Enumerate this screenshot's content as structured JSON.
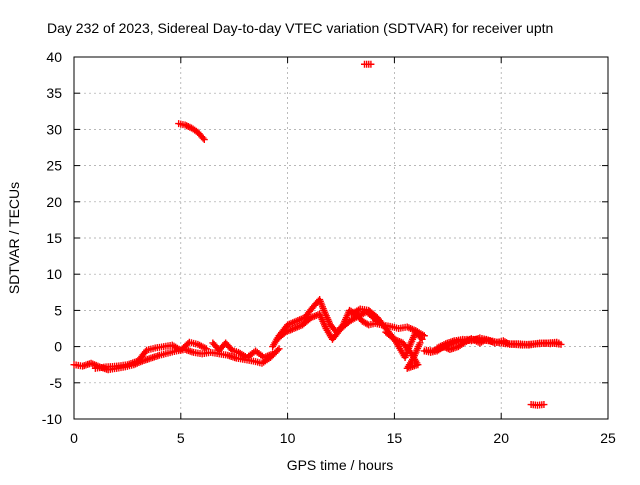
{
  "chart_data": {
    "type": "scatter",
    "title": "Day 232 of 2023, Sidereal Day-to-day VTEC variation (SDTVAR) for receiver uptn",
    "xlabel": "GPS time / hours",
    "ylabel": "SDTVAR / TECUs",
    "xlim": [
      0,
      25
    ],
    "ylim": [
      -10,
      40
    ],
    "xticks": [
      0,
      5,
      10,
      15,
      20,
      25
    ],
    "yticks": [
      -10,
      -5,
      0,
      5,
      10,
      15,
      20,
      25,
      30,
      35,
      40
    ],
    "grid": true,
    "marker": "+",
    "series_color": "#ff0000",
    "series": [
      {
        "name": "SDTVAR",
        "segments": [
          [
            [
              0,
              -2.5
            ],
            [
              0.4,
              -2.7
            ],
            [
              0.8,
              -2.3
            ],
            [
              1.2,
              -2.8
            ],
            [
              1.6,
              -3.2
            ],
            [
              2.0,
              -3.0
            ],
            [
              2.4,
              -2.8
            ],
            [
              2.8,
              -2.5
            ],
            [
              3.2,
              -2.0
            ],
            [
              3.6,
              -1.6
            ],
            [
              4.0,
              -1.2
            ],
            [
              4.4,
              -0.9
            ],
            [
              4.8,
              -0.6
            ],
            [
              5.2,
              -0.4
            ],
            [
              5.6,
              -0.8
            ],
            [
              6.0,
              -1.0
            ],
            [
              6.4,
              -0.8
            ],
            [
              6.8,
              -1.0
            ],
            [
              7.2,
              -1.2
            ],
            [
              7.6,
              -1.6
            ],
            [
              8.0,
              -1.8
            ],
            [
              8.4,
              -2.0
            ],
            [
              8.8,
              -2.3
            ],
            [
              9.2,
              -1.5
            ],
            [
              9.6,
              -0.3
            ]
          ],
          [
            [
              1.0,
              -3.0
            ],
            [
              1.5,
              -2.8
            ],
            [
              2.0,
              -2.7
            ],
            [
              2.5,
              -2.5
            ],
            [
              3.0,
              -2.0
            ],
            [
              3.4,
              -0.5
            ],
            [
              3.8,
              -0.2
            ],
            [
              4.2,
              0.0
            ],
            [
              4.6,
              0.2
            ],
            [
              5.0,
              -0.5
            ],
            [
              5.4,
              0.6
            ],
            [
              5.8,
              0.3
            ],
            [
              6.2,
              -0.3
            ]
          ],
          [
            [
              6.5,
              0.5
            ],
            [
              6.8,
              -0.5
            ],
            [
              7.1,
              0.5
            ],
            [
              7.4,
              -0.5
            ],
            [
              7.7,
              -0.8
            ],
            [
              8.1,
              -1.5
            ],
            [
              8.5,
              -0.6
            ],
            [
              8.9,
              -1.5
            ],
            [
              9.3,
              -1.0
            ]
          ],
          [
            [
              9.3,
              0.0
            ],
            [
              9.6,
              1.5
            ],
            [
              10.0,
              3.0
            ],
            [
              10.4,
              3.5
            ],
            [
              10.8,
              4.0
            ],
            [
              11.2,
              5.5
            ],
            [
              11.5,
              6.5
            ],
            [
              11.7,
              5.0
            ],
            [
              12.0,
              3.0
            ],
            [
              12.3,
              2.0
            ],
            [
              12.6,
              3.0
            ],
            [
              12.9,
              5.0
            ],
            [
              13.2,
              4.5
            ],
            [
              13.5,
              3.5
            ],
            [
              13.8,
              3.0
            ],
            [
              14.1,
              3.2
            ],
            [
              14.4,
              3.0
            ],
            [
              14.8,
              2.8
            ],
            [
              15.2,
              2.5
            ],
            [
              15.6,
              2.7
            ],
            [
              16.0,
              2.2
            ],
            [
              16.4,
              1.5
            ]
          ],
          [
            [
              9.5,
              1.0
            ],
            [
              9.9,
              2.0
            ],
            [
              10.3,
              2.5
            ],
            [
              10.7,
              3.0
            ],
            [
              11.1,
              4.0
            ],
            [
              11.5,
              4.5
            ],
            [
              11.8,
              2.5
            ],
            [
              12.1,
              1.0
            ],
            [
              12.5,
              2.5
            ],
            [
              12.9,
              3.5
            ],
            [
              13.3,
              4.2
            ],
            [
              13.7,
              4.8
            ],
            [
              14.2,
              3.5
            ]
          ],
          [
            [
              13.0,
              4.5
            ],
            [
              13.4,
              5.2
            ],
            [
              13.8,
              5.0
            ],
            [
              14.2,
              4.0
            ],
            [
              14.6,
              2.5
            ],
            [
              15.0,
              1.0
            ],
            [
              15.3,
              -0.5
            ],
            [
              15.5,
              -1.5
            ],
            [
              15.7,
              0.0
            ],
            [
              16.0,
              2.0
            ],
            [
              16.3,
              1.0
            ]
          ],
          [
            [
              14.6,
              2.0
            ],
            [
              15.0,
              1.0
            ],
            [
              15.4,
              0.5
            ],
            [
              15.8,
              -1.0
            ],
            [
              16.1,
              -2.5
            ],
            [
              15.6,
              -3.0
            ],
            [
              15.9,
              -1.5
            ],
            [
              16.2,
              0.5
            ]
          ],
          [
            [
              16.5,
              -0.5
            ],
            [
              16.8,
              -0.6
            ],
            [
              17.2,
              -0.2
            ],
            [
              17.6,
              0.3
            ],
            [
              18.0,
              0.8
            ],
            [
              18.4,
              1.0
            ],
            [
              18.8,
              1.0
            ],
            [
              19.2,
              0.9
            ],
            [
              19.6,
              0.7
            ],
            [
              20.0,
              0.5
            ],
            [
              20.4,
              0.4
            ],
            [
              20.8,
              0.4
            ],
            [
              21.2,
              0.3
            ],
            [
              21.6,
              0.4
            ],
            [
              22.0,
              0.5
            ],
            [
              22.4,
              0.5
            ],
            [
              22.8,
              0.3
            ]
          ],
          [
            [
              16.4,
              -0.6
            ],
            [
              16.7,
              -0.8
            ],
            [
              17.0,
              -0.6
            ],
            [
              17.3,
              0.0
            ],
            [
              17.6,
              -0.4
            ],
            [
              18.0,
              0.0
            ],
            [
              18.3,
              0.6
            ],
            [
              18.6,
              1.1
            ],
            [
              19.0,
              0.5
            ],
            [
              19.3,
              1.0
            ],
            [
              19.7,
              0.5
            ],
            [
              20.1,
              0.8
            ],
            [
              20.4,
              0.3
            ],
            [
              20.8,
              0.3
            ],
            [
              21.3,
              0.2
            ],
            [
              21.8,
              0.5
            ],
            [
              22.3,
              0.4
            ],
            [
              22.7,
              0.5
            ]
          ],
          [
            [
              17.0,
              -0.2
            ],
            [
              17.4,
              0.4
            ],
            [
              17.8,
              0.8
            ],
            [
              18.2,
              1.0
            ],
            [
              18.6,
              0.8
            ],
            [
              19.0,
              1.2
            ],
            [
              19.4,
              0.9
            ],
            [
              19.8,
              0.6
            ],
            [
              20.2,
              0.4
            ],
            [
              20.6,
              0.3
            ],
            [
              21.0,
              0.2
            ],
            [
              21.4,
              0.3
            ],
            [
              21.8,
              0.4
            ],
            [
              22.2,
              0.5
            ],
            [
              22.6,
              0.6
            ]
          ],
          [
            [
              4.9,
              30.8
            ],
            [
              5.2,
              30.6
            ],
            [
              5.5,
              30.2
            ],
            [
              5.8,
              29.6
            ],
            [
              6.1,
              28.6
            ]
          ],
          [
            [
              13.6,
              39.0
            ],
            [
              13.9,
              39.0
            ]
          ],
          [
            [
              21.4,
              -8.0
            ],
            [
              21.7,
              -8.1
            ],
            [
              22.0,
              -8.0
            ]
          ]
        ]
      }
    ]
  }
}
